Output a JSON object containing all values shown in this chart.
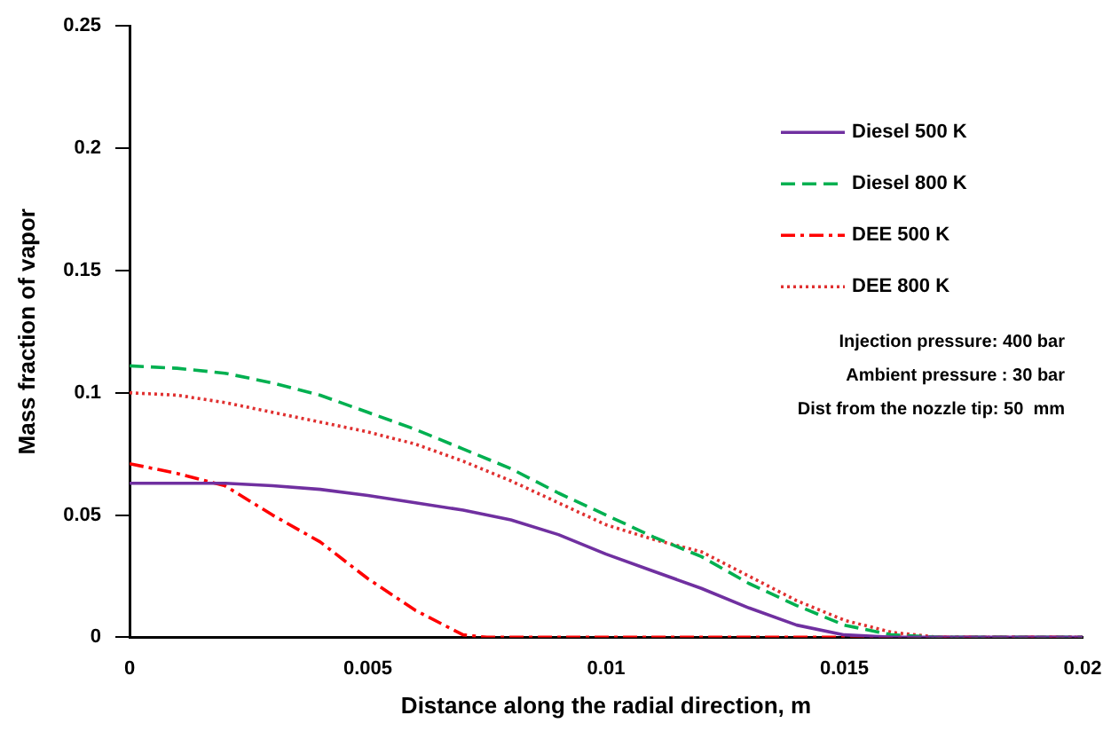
{
  "chart_data": {
    "type": "line",
    "xlabel": "Distance along the radial direction, m",
    "ylabel": "Mass fraction of vapor",
    "xlim": [
      0,
      0.02
    ],
    "xticks": [
      0,
      0.005,
      0.01,
      0.015,
      0.02
    ],
    "ylim": [
      0,
      0.25
    ],
    "yticks": [
      0,
      0.05,
      0.1,
      0.15,
      0.2,
      0.25
    ],
    "grid": false,
    "legend": "top right",
    "marker": "none",
    "annotations": [
      "Injection pressure: 400 bar",
      "Ambient pressure : 30 bar",
      "Dist from the nozzle tip: 50  mm"
    ],
    "series": [
      {
        "name": "Diesel 500 K",
        "color": "#7030a0",
        "line_style": "solid",
        "x": [
          0,
          0.001,
          0.002,
          0.003,
          0.004,
          0.005,
          0.006,
          0.007,
          0.008,
          0.009,
          0.01,
          0.011,
          0.012,
          0.013,
          0.014,
          0.015,
          0.016,
          0.02
        ],
        "values": [
          0.063,
          0.063,
          0.063,
          0.062,
          0.0605,
          0.058,
          0.055,
          0.052,
          0.048,
          0.042,
          0.034,
          0.027,
          0.02,
          0.012,
          0.005,
          0.001,
          0,
          0
        ]
      },
      {
        "name": "Diesel 800 K",
        "color": "#00b050",
        "line_style": "dashed",
        "x": [
          0,
          0.001,
          0.002,
          0.003,
          0.004,
          0.005,
          0.006,
          0.007,
          0.008,
          0.009,
          0.01,
          0.011,
          0.012,
          0.013,
          0.014,
          0.015,
          0.016,
          0.017,
          0.02
        ],
        "values": [
          0.111,
          0.11,
          0.108,
          0.104,
          0.099,
          0.092,
          0.085,
          0.077,
          0.069,
          0.059,
          0.05,
          0.041,
          0.033,
          0.022,
          0.013,
          0.005,
          0.001,
          0,
          0
        ]
      },
      {
        "name": "DEE 500 K",
        "color": "#ff0000",
        "line_style": "dashdot",
        "x": [
          0,
          0.001,
          0.002,
          0.003,
          0.004,
          0.005,
          0.006,
          0.007,
          0.0075,
          0.02
        ],
        "values": [
          0.071,
          0.067,
          0.062,
          0.05,
          0.039,
          0.024,
          0.011,
          0.001,
          0,
          0
        ]
      },
      {
        "name": "DEE 800 K",
        "color": "#e03030",
        "line_style": "dotted",
        "x": [
          0,
          0.001,
          0.002,
          0.003,
          0.004,
          0.005,
          0.006,
          0.007,
          0.008,
          0.009,
          0.01,
          0.011,
          0.012,
          0.013,
          0.014,
          0.015,
          0.016,
          0.017,
          0.02
        ],
        "values": [
          0.1,
          0.099,
          0.096,
          0.092,
          0.088,
          0.084,
          0.079,
          0.072,
          0.064,
          0.055,
          0.046,
          0.04,
          0.035,
          0.025,
          0.015,
          0.007,
          0.002,
          0,
          0
        ]
      }
    ]
  }
}
